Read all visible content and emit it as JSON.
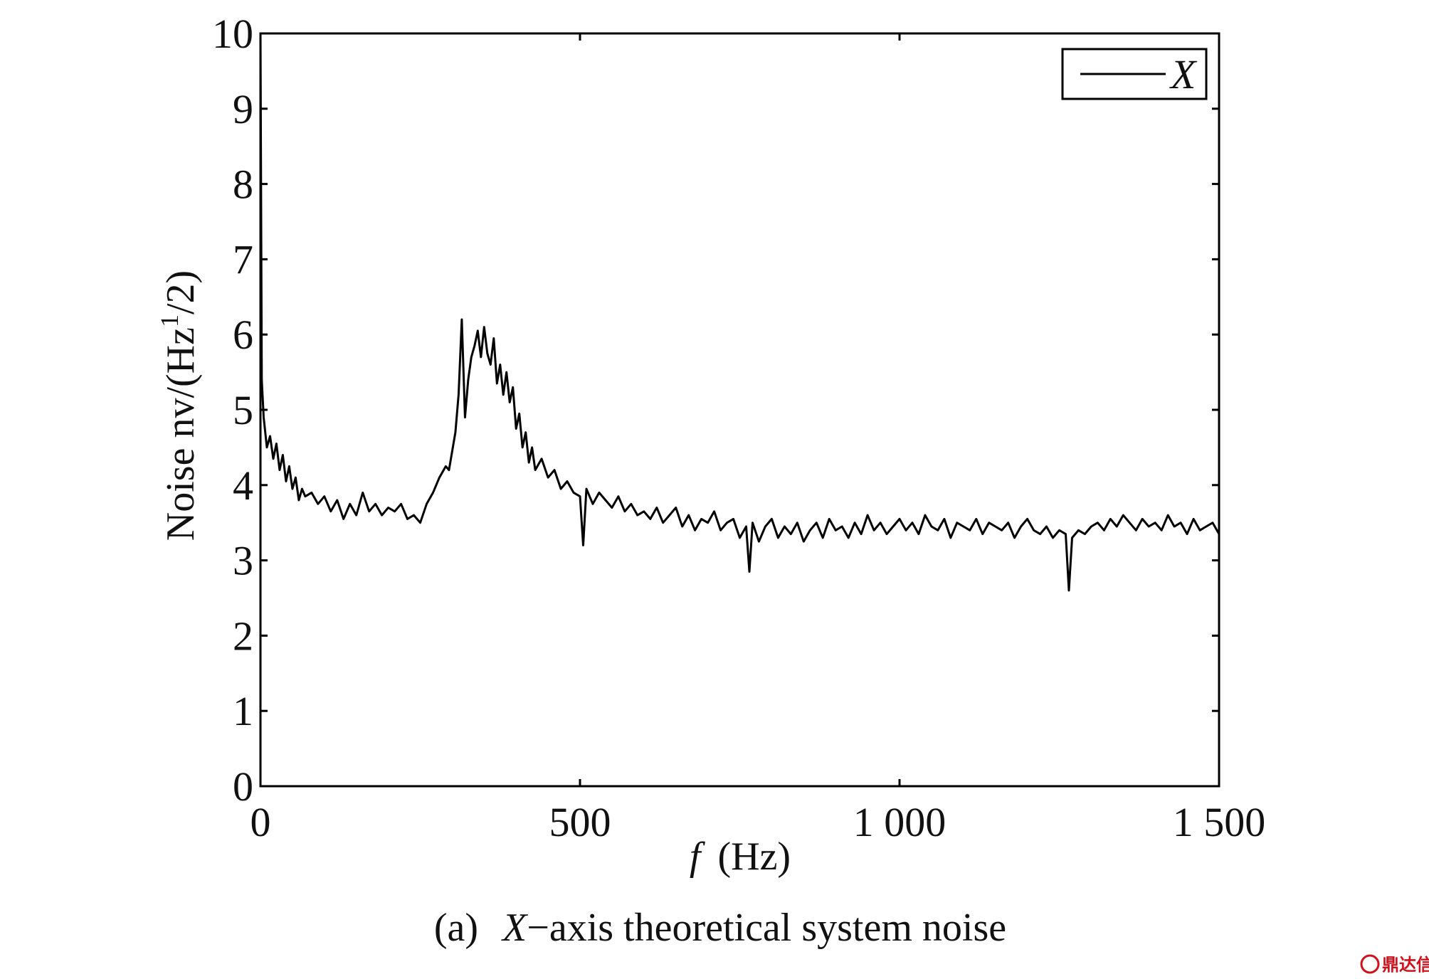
{
  "chart_data": {
    "type": "line",
    "caption_prefix": "(a)",
    "caption_var": "X",
    "caption_rest": "−axis theoretical system noise",
    "xlabel_var": "f",
    "xlabel_unit": "(Hz)",
    "ylabel_main": "Noise nv/(Hz",
    "ylabel_sup": "1",
    "ylabel_tail": "/2)",
    "xlim": [
      0,
      1500
    ],
    "ylim": [
      0,
      10
    ],
    "xticks": [
      0,
      500,
      1000,
      1500
    ],
    "xtick_labels": [
      "0",
      "500",
      "1 000",
      "1 500"
    ],
    "yticks": [
      0,
      1,
      2,
      3,
      4,
      5,
      6,
      7,
      8,
      9,
      10
    ],
    "ytick_labels": [
      "0",
      "1",
      "2",
      "3",
      "4",
      "5",
      "6",
      "7",
      "8",
      "9",
      "10"
    ],
    "grid": false,
    "legend_position": "top-right",
    "series": [
      {
        "name": "X",
        "color": "#000000",
        "x": [
          0,
          2,
          5,
          10,
          15,
          20,
          25,
          30,
          35,
          40,
          45,
          50,
          55,
          60,
          65,
          70,
          80,
          90,
          100,
          110,
          120,
          130,
          140,
          150,
          160,
          170,
          180,
          190,
          200,
          210,
          220,
          230,
          240,
          250,
          260,
          270,
          280,
          290,
          295,
          300,
          305,
          310,
          315,
          320,
          325,
          330,
          335,
          340,
          345,
          350,
          355,
          360,
          365,
          370,
          375,
          380,
          385,
          390,
          395,
          400,
          405,
          410,
          415,
          420,
          425,
          430,
          440,
          450,
          460,
          470,
          480,
          490,
          500,
          505,
          510,
          520,
          530,
          540,
          550,
          560,
          570,
          580,
          590,
          600,
          610,
          620,
          630,
          640,
          650,
          660,
          670,
          680,
          690,
          700,
          710,
          720,
          730,
          740,
          750,
          760,
          765,
          770,
          780,
          790,
          800,
          810,
          820,
          830,
          840,
          850,
          860,
          870,
          880,
          890,
          900,
          910,
          920,
          930,
          940,
          950,
          960,
          970,
          980,
          990,
          1000,
          1010,
          1020,
          1030,
          1040,
          1050,
          1060,
          1070,
          1080,
          1090,
          1100,
          1110,
          1120,
          1130,
          1140,
          1150,
          1160,
          1170,
          1180,
          1190,
          1200,
          1210,
          1220,
          1230,
          1240,
          1250,
          1260,
          1265,
          1270,
          1280,
          1290,
          1300,
          1310,
          1320,
          1330,
          1340,
          1350,
          1360,
          1370,
          1380,
          1390,
          1400,
          1410,
          1420,
          1430,
          1440,
          1450,
          1460,
          1470,
          1480,
          1490,
          1500
        ],
        "y": [
          10.0,
          5.4,
          4.9,
          4.5,
          4.65,
          4.35,
          4.55,
          4.2,
          4.4,
          4.05,
          4.25,
          3.95,
          4.1,
          3.8,
          3.95,
          3.85,
          3.9,
          3.75,
          3.85,
          3.65,
          3.8,
          3.55,
          3.75,
          3.6,
          3.9,
          3.65,
          3.75,
          3.6,
          3.7,
          3.65,
          3.75,
          3.55,
          3.6,
          3.5,
          3.75,
          3.9,
          4.1,
          4.25,
          4.2,
          4.45,
          4.7,
          5.2,
          6.2,
          4.9,
          5.4,
          5.7,
          5.85,
          6.05,
          5.7,
          6.1,
          5.75,
          5.6,
          5.95,
          5.35,
          5.6,
          5.2,
          5.5,
          5.1,
          5.3,
          4.75,
          4.95,
          4.5,
          4.7,
          4.3,
          4.5,
          4.2,
          4.35,
          4.1,
          4.2,
          3.95,
          4.05,
          3.9,
          3.85,
          3.2,
          3.95,
          3.75,
          3.9,
          3.8,
          3.7,
          3.85,
          3.65,
          3.75,
          3.6,
          3.65,
          3.55,
          3.7,
          3.5,
          3.6,
          3.7,
          3.45,
          3.6,
          3.4,
          3.55,
          3.5,
          3.65,
          3.4,
          3.5,
          3.55,
          3.3,
          3.45,
          2.85,
          3.5,
          3.25,
          3.45,
          3.55,
          3.3,
          3.45,
          3.35,
          3.5,
          3.25,
          3.4,
          3.5,
          3.3,
          3.55,
          3.4,
          3.45,
          3.3,
          3.5,
          3.35,
          3.6,
          3.4,
          3.5,
          3.35,
          3.45,
          3.55,
          3.4,
          3.5,
          3.35,
          3.6,
          3.45,
          3.4,
          3.55,
          3.3,
          3.5,
          3.45,
          3.4,
          3.55,
          3.35,
          3.5,
          3.45,
          3.4,
          3.5,
          3.3,
          3.45,
          3.55,
          3.4,
          3.35,
          3.45,
          3.3,
          3.4,
          3.35,
          2.6,
          3.3,
          3.4,
          3.35,
          3.45,
          3.5,
          3.4,
          3.55,
          3.45,
          3.6,
          3.5,
          3.4,
          3.55,
          3.45,
          3.5,
          3.4,
          3.6,
          3.45,
          3.5,
          3.35,
          3.55,
          3.4,
          3.45,
          3.5,
          3.35
        ]
      }
    ]
  },
  "watermark": {
    "text": "鼎达信",
    "color": "#d0101a"
  }
}
